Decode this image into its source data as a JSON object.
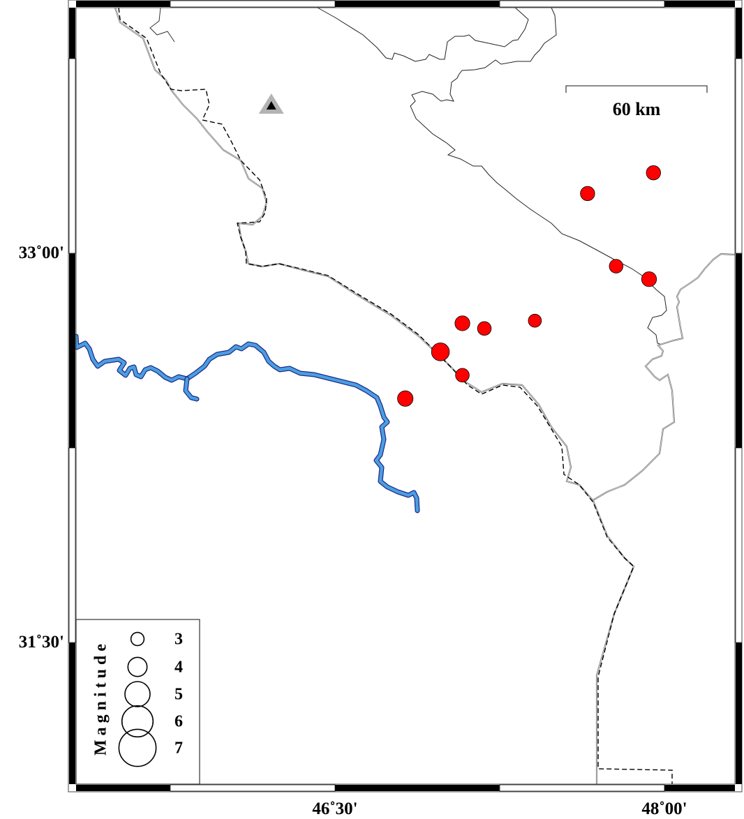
{
  "map": {
    "extent": {
      "lon_min": 45.32,
      "lon_max": 48.32,
      "lat_min": 30.95,
      "lat_max": 33.95
    },
    "lat_labels": [
      {
        "lat": 33.0,
        "text": "33˚00'"
      },
      {
        "lat": 31.5,
        "text": "31˚30'"
      }
    ],
    "lon_labels": [
      {
        "lon": 46.5,
        "text": "46˚30'"
      },
      {
        "lon": 48.0,
        "text": "48˚00'"
      }
    ],
    "frame_interval_minutes": 45,
    "scale_bar": {
      "label": "60 km",
      "length_km": 60
    },
    "station": {
      "lon": 46.21,
      "lat": 33.57,
      "icon": "triangle-station-icon",
      "outer_color": "#b3b3b3",
      "inner_color": "#000000"
    },
    "event_color": "#ff0000",
    "river_color": "#4a9fe0",
    "events": [
      {
        "lon": 47.65,
        "lat": 33.23,
        "mag": 3.2
      },
      {
        "lon": 47.95,
        "lat": 33.31,
        "mag": 3.2
      },
      {
        "lon": 47.78,
        "lat": 32.95,
        "mag": 3.1
      },
      {
        "lon": 47.93,
        "lat": 32.9,
        "mag": 3.3
      },
      {
        "lon": 47.08,
        "lat": 32.73,
        "mag": 3.3
      },
      {
        "lon": 47.18,
        "lat": 32.71,
        "mag": 3.1
      },
      {
        "lon": 47.41,
        "lat": 32.74,
        "mag": 3.0
      },
      {
        "lon": 46.98,
        "lat": 32.62,
        "mag": 3.8
      },
      {
        "lon": 47.08,
        "lat": 32.53,
        "mag": 3.1
      },
      {
        "lon": 46.82,
        "lat": 32.44,
        "mag": 3.4
      }
    ]
  },
  "legend": {
    "title": "Magnitude",
    "items": [
      {
        "mag": 3,
        "label": "3"
      },
      {
        "mag": 4,
        "label": "4"
      },
      {
        "mag": 5,
        "label": "5"
      },
      {
        "mag": 6,
        "label": "6"
      },
      {
        "mag": 7,
        "label": "7"
      }
    ]
  }
}
